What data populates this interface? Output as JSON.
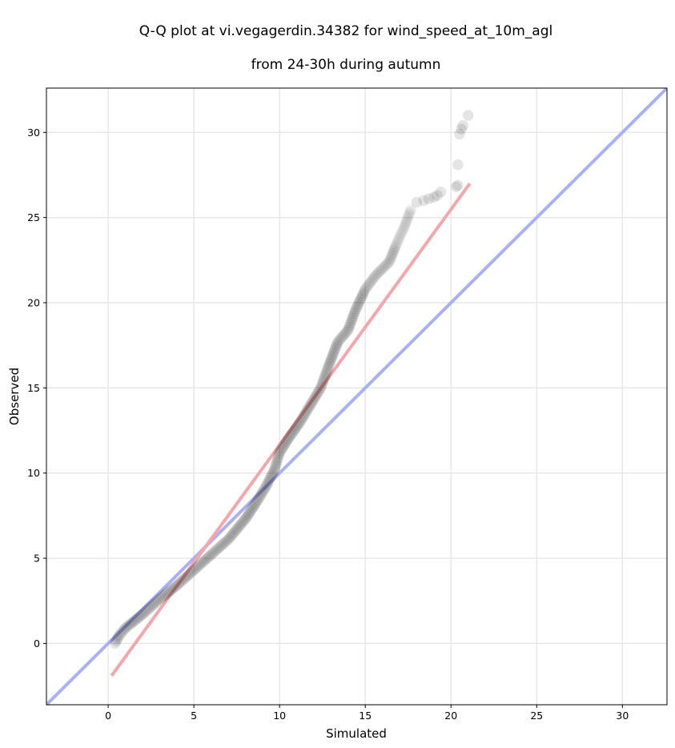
{
  "chart_data": {
    "type": "scatter",
    "title_line1": "Q-Q plot at vi.vegagerdin.34382 for wind_speed_at_10m_agl",
    "title_line2": "from 24-30h during autumn",
    "xlabel": "Simulated",
    "ylabel": "Observed",
    "xlim": [
      -3.6,
      32.6
    ],
    "ylim": [
      -3.6,
      32.6
    ],
    "xticks": [
      0,
      5,
      10,
      15,
      20,
      25,
      30
    ],
    "yticks": [
      0,
      5,
      10,
      15,
      20,
      25,
      30
    ],
    "grid": true,
    "colors": {
      "points": "#000000",
      "identity_line": "#aab0f4",
      "fit_line": "#f4a6aa",
      "grid": "#e6e6e6"
    },
    "identity_line": {
      "x": [
        -3.6,
        32.6
      ],
      "y": [
        -3.6,
        32.6
      ]
    },
    "fit_line": {
      "x": [
        0.2,
        21.1
      ],
      "y": [
        -1.9,
        27.0
      ]
    },
    "points_path": [
      [
        0.4,
        0.0
      ],
      [
        0.6,
        0.4
      ],
      [
        1.0,
        0.9
      ],
      [
        2.0,
        1.7
      ],
      [
        3.0,
        2.6
      ],
      [
        4.0,
        3.4
      ],
      [
        5.0,
        4.3
      ],
      [
        6.0,
        5.2
      ],
      [
        7.0,
        6.1
      ],
      [
        8.0,
        7.3
      ],
      [
        8.6,
        8.2
      ],
      [
        9.2,
        9.2
      ],
      [
        9.7,
        10.2
      ],
      [
        10.0,
        11.2
      ],
      [
        10.5,
        12.0
      ],
      [
        11.2,
        13.0
      ],
      [
        11.8,
        14.0
      ],
      [
        12.4,
        15.0
      ],
      [
        12.9,
        16.4
      ],
      [
        13.4,
        17.7
      ],
      [
        14.0,
        18.4
      ],
      [
        14.4,
        19.5
      ],
      [
        15.0,
        20.8
      ],
      [
        15.6,
        21.6
      ],
      [
        16.4,
        22.4
      ],
      [
        16.8,
        23.4
      ],
      [
        17.3,
        24.5
      ],
      [
        17.7,
        25.6
      ]
    ],
    "points_tail": [
      [
        18.0,
        25.9
      ],
      [
        18.4,
        26.0
      ],
      [
        18.7,
        26.1
      ],
      [
        19.0,
        26.2
      ],
      [
        19.2,
        26.3
      ],
      [
        19.4,
        26.5
      ],
      [
        20.3,
        26.8
      ],
      [
        20.4,
        26.9
      ],
      [
        20.4,
        28.1
      ],
      [
        20.5,
        29.9
      ],
      [
        20.6,
        30.2
      ],
      [
        20.7,
        30.4
      ],
      [
        21.0,
        31.0
      ]
    ]
  }
}
